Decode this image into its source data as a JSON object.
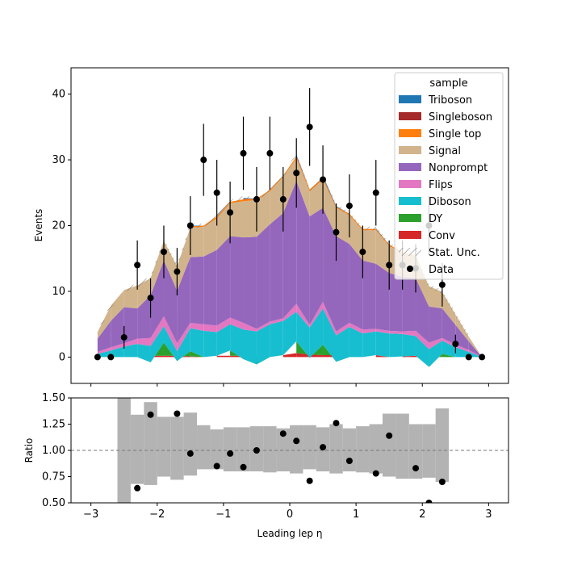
{
  "chart_data": [
    {
      "type": "bar",
      "stacked": true,
      "ylabel": "Events",
      "ylim": [
        -4,
        44
      ],
      "yticks": [
        0,
        10,
        20,
        30,
        40
      ],
      "xlim": [
        -3.3,
        3.3
      ],
      "x_edges": [
        -2.9,
        -2.7,
        -2.5,
        -2.3,
        -2.1,
        -1.9,
        -1.7,
        -1.5,
        -1.3,
        -1.1,
        -0.9,
        -0.7,
        -0.5,
        -0.3,
        -0.1,
        0.1,
        0.3,
        0.5,
        0.7,
        0.9,
        1.1,
        1.3,
        1.5,
        1.7,
        1.9,
        2.1,
        2.3,
        2.5,
        2.7,
        2.9
      ],
      "series": [
        {
          "name": "Conv",
          "color": "#d62728",
          "values": [
            0,
            0,
            0,
            0,
            0.2,
            0.2,
            0.2,
            0.1,
            0,
            0.2,
            0.2,
            0.2,
            0.2,
            0,
            0.3,
            0.6,
            0.4,
            0.3,
            0.3,
            0,
            0,
            0.3,
            0,
            0.1,
            0.2,
            0,
            0,
            0,
            0
          ]
        },
        {
          "name": "DY",
          "color": "#2ca02c",
          "values": [
            0,
            0,
            0,
            0,
            -1.0,
            2.0,
            -0.8,
            0.8,
            0,
            0,
            0.8,
            -0.5,
            -1.3,
            0,
            0,
            1.8,
            -0.5,
            1.6,
            -1.0,
            0,
            0,
            0,
            0,
            0,
            0,
            -1.5,
            0.5,
            0,
            0
          ]
        },
        {
          "name": "Diboson",
          "color": "#17becf",
          "values": [
            0.5,
            1.0,
            1.6,
            2.0,
            2.5,
            2.5,
            1.5,
            3.5,
            4.0,
            3.6,
            4.0,
            4.5,
            5.0,
            5.0,
            5.2,
            4.5,
            4.6,
            5.5,
            4.0,
            4.6,
            3.6,
            3.6,
            3.6,
            3.4,
            3.0,
            2.7,
            2.0,
            1.5,
            0.8
          ]
        },
        {
          "name": "Flips",
          "color": "#e377c2",
          "values": [
            0.3,
            0.5,
            0.5,
            0.8,
            1.2,
            1.5,
            1.2,
            0.8,
            1.0,
            1.0,
            1.0,
            1.0,
            0.4,
            0.4,
            0.4,
            1.2,
            0.4,
            1.0,
            0.6,
            0.6,
            0.6,
            0.4,
            0.4,
            0.4,
            0.8,
            1.0,
            0.4,
            0.4,
            0.3
          ]
        },
        {
          "name": "Nonprompt",
          "color": "#9467bd",
          "values": [
            2.0,
            4.0,
            5.5,
            4.6,
            6.5,
            8.5,
            8.0,
            10.0,
            10.3,
            11.5,
            12.4,
            13.0,
            14.0,
            14.8,
            16.0,
            18.7,
            16.5,
            14.3,
            14.5,
            12.0,
            10.5,
            9.9,
            8.8,
            8.3,
            8.0,
            5.5,
            4.5,
            3.0,
            1.3
          ]
        },
        {
          "name": "Signal",
          "color": "#d2b48c",
          "values": [
            1.0,
            2.3,
            2.6,
            3.5,
            2.6,
            3.0,
            3.7,
            4.5,
            4.5,
            4.8,
            5.0,
            5.5,
            5.6,
            5.0,
            5.5,
            3.4,
            3.8,
            4.3,
            4.3,
            4.4,
            4.6,
            5.1,
            4.1,
            3.7,
            3.3,
            3.1,
            2.5,
            1.6,
            0.7
          ]
        },
        {
          "name": "Single top",
          "color": "#ff7f0e",
          "values": [
            0,
            0,
            0,
            0,
            0,
            0,
            0,
            0.2,
            0.2,
            0.3,
            0.2,
            0.3,
            0.2,
            0.2,
            0.2,
            0.3,
            0.3,
            0.3,
            0.2,
            0.2,
            0.2,
            0.2,
            0.2,
            0.1,
            0.1,
            0,
            0,
            0,
            0
          ]
        },
        {
          "name": "Singleboson",
          "color": "#a52a2a",
          "values": [
            0,
            0,
            0,
            0,
            0,
            0,
            0,
            0,
            0,
            0,
            0,
            0.1,
            0,
            0,
            0,
            0.1,
            0,
            0.1,
            0,
            0,
            0,
            0,
            0,
            0,
            0,
            0,
            0,
            0,
            0
          ]
        },
        {
          "name": "Triboson",
          "color": "#1f77b4",
          "values": [
            0,
            0,
            0,
            0,
            0,
            0,
            0,
            0.1,
            0,
            0.1,
            0,
            0.1,
            0,
            0,
            0,
            0.2,
            0,
            0.2,
            0.1,
            0,
            0,
            0.1,
            0,
            0,
            0,
            0,
            0,
            0,
            0
          ]
        }
      ],
      "stat_unc": {
        "name": "Stat. Unc.",
        "hatch": "////"
      },
      "data": {
        "name": "Data",
        "x": [
          -2.9,
          -2.7,
          -2.5,
          -2.3,
          -2.1,
          -1.9,
          -1.7,
          -1.5,
          -1.3,
          -1.1,
          -0.9,
          -0.7,
          -0.5,
          -0.3,
          -0.1,
          0.1,
          0.3,
          0.5,
          0.7,
          0.9,
          1.1,
          1.3,
          1.5,
          1.7,
          1.9,
          2.1,
          2.3,
          2.5,
          2.7,
          2.9
        ],
        "y": [
          0,
          0,
          3,
          14,
          9,
          16,
          13,
          20,
          30,
          25,
          22,
          31,
          24,
          31,
          24,
          28,
          35,
          27,
          19,
          23,
          16,
          25,
          14,
          14,
          13.5,
          20,
          11,
          2,
          0,
          0
        ]
      },
      "legend": {
        "title": "sample",
        "position": "upper-right"
      }
    },
    {
      "type": "scatter",
      "ylabel": "Ratio",
      "xlabel": "Leading lep η",
      "ylim": [
        0.5,
        1.5
      ],
      "yticks": [
        0.5,
        0.75,
        1.0,
        1.25,
        1.5
      ],
      "xlim": [
        -3.3,
        3.3
      ],
      "xticks": [
        -3,
        -2,
        -1,
        0,
        1,
        2,
        3
      ],
      "reference_line": 1.0,
      "band_edges": [
        -2.6,
        -2.4,
        -2.2,
        -2.0,
        -1.8,
        -1.6,
        -1.4,
        -1.2,
        -1.0,
        -0.8,
        -0.6,
        -0.4,
        -0.2,
        0.0,
        0.2,
        0.4,
        0.6,
        0.8,
        1.0,
        1.2,
        1.4,
        1.6,
        1.8,
        2.0,
        2.2,
        2.4
      ],
      "band_low": [
        0.5,
        0.68,
        0.67,
        0.75,
        0.72,
        0.76,
        0.82,
        0.82,
        0.8,
        0.8,
        0.8,
        0.79,
        0.8,
        0.78,
        0.82,
        0.8,
        0.78,
        0.8,
        0.79,
        0.78,
        0.75,
        0.73,
        0.73,
        0.74,
        0.7
      ],
      "band_high": [
        1.5,
        1.34,
        1.46,
        1.32,
        1.32,
        1.36,
        1.24,
        1.2,
        1.22,
        1.22,
        1.23,
        1.23,
        1.21,
        1.24,
        1.24,
        1.22,
        1.25,
        1.21,
        1.23,
        1.25,
        1.35,
        1.35,
        1.25,
        1.25,
        1.4
      ],
      "points_x": [
        -2.3,
        -2.1,
        -1.7,
        -1.5,
        -1.1,
        -0.9,
        -0.7,
        -0.5,
        -0.1,
        0.1,
        0.3,
        0.5,
        0.7,
        0.9,
        1.3,
        1.5,
        1.9,
        2.1,
        2.3
      ],
      "points_y": [
        0.64,
        1.34,
        1.35,
        0.97,
        0.85,
        0.97,
        0.84,
        1.0,
        1.16,
        1.09,
        0.71,
        1.03,
        1.26,
        0.9,
        0.78,
        1.14,
        0.83,
        0.5,
        0.7
      ]
    }
  ]
}
